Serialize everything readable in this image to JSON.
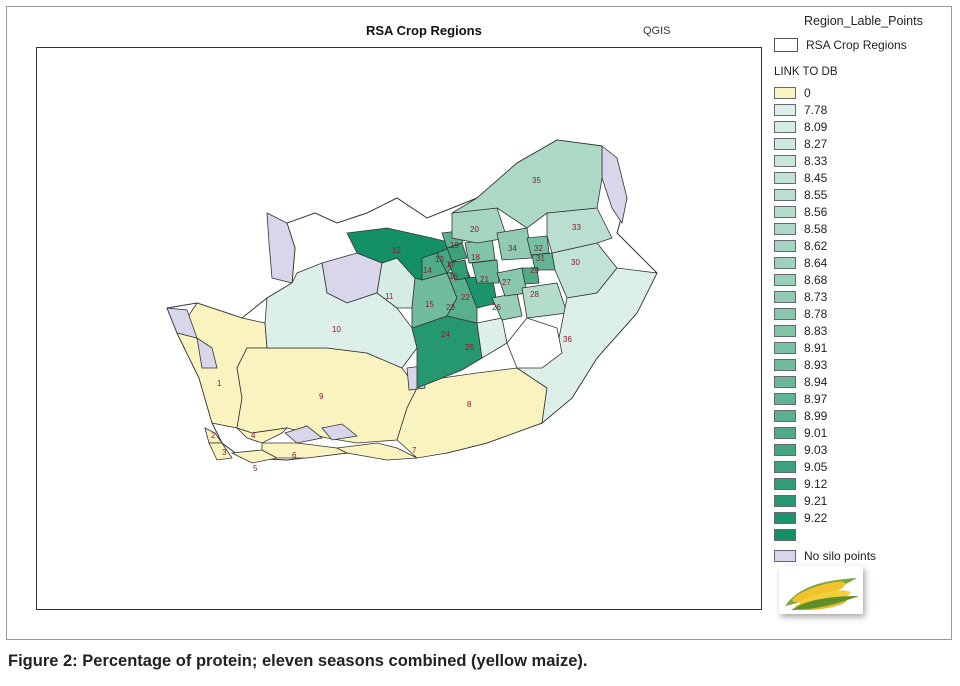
{
  "map": {
    "title": "RSA Crop Regions",
    "subtitle": "QGIS",
    "colors": {
      "zero": "#f8f3bf",
      "no_silo": "#d9d6ec",
      "border": "#333333"
    },
    "region_labels": [
      {
        "id": "1",
        "value": "0"
      },
      {
        "id": "2",
        "value": "0"
      },
      {
        "id": "3",
        "value": "0"
      },
      {
        "id": "4",
        "value": "0"
      },
      {
        "id": "5",
        "value": "0"
      },
      {
        "id": "6",
        "value": "0"
      },
      {
        "id": "7",
        "value": "0"
      },
      {
        "id": "8",
        "value": "0"
      },
      {
        "id": "9",
        "value": "0"
      },
      {
        "id": "10"
      },
      {
        "id": "11"
      },
      {
        "id": "12"
      },
      {
        "id": "13"
      },
      {
        "id": "14"
      },
      {
        "id": "15"
      },
      {
        "id": "16"
      },
      {
        "id": "17"
      },
      {
        "id": "18"
      },
      {
        "id": "19"
      },
      {
        "id": "20"
      },
      {
        "id": "21"
      },
      {
        "id": "22"
      },
      {
        "id": "23"
      },
      {
        "id": "24"
      },
      {
        "id": "25"
      },
      {
        "id": "26"
      },
      {
        "id": "27"
      },
      {
        "id": "28"
      },
      {
        "id": "29"
      },
      {
        "id": "30"
      },
      {
        "id": "31"
      },
      {
        "id": "32"
      },
      {
        "id": "33"
      },
      {
        "id": "34"
      },
      {
        "id": "35"
      },
      {
        "id": "36"
      }
    ]
  },
  "legend": {
    "header": "Region_Lable_Points",
    "crop_layer": "RSA Crop Regions",
    "group_title": "LINK TO DB",
    "items": [
      {
        "label": "0",
        "color": "#f8f3bf"
      },
      {
        "label": "7.78",
        "color": "#dcefe9"
      },
      {
        "label": "8.09",
        "color": "#d5ece4"
      },
      {
        "label": "8.27",
        "color": "#cfe9df"
      },
      {
        "label": "8.33",
        "color": "#c8e6da"
      },
      {
        "label": "8.45",
        "color": "#c1e3d5"
      },
      {
        "label": "8.55",
        "color": "#badfd0"
      },
      {
        "label": "8.56",
        "color": "#b3dccb"
      },
      {
        "label": "8.58",
        "color": "#acd9c6"
      },
      {
        "label": "8.62",
        "color": "#a5d5c1"
      },
      {
        "label": "8.64",
        "color": "#9ed2bc"
      },
      {
        "label": "8.68",
        "color": "#97cfb7"
      },
      {
        "label": "8.73",
        "color": "#90cbb2"
      },
      {
        "label": "8.78",
        "color": "#89c8ad"
      },
      {
        "label": "8.83",
        "color": "#81c4a8"
      },
      {
        "label": "8.91",
        "color": "#7ac0a3"
      },
      {
        "label": "8.93",
        "color": "#72bc9e"
      },
      {
        "label": "8.94",
        "color": "#6ab899"
      },
      {
        "label": "8.97",
        "color": "#61b493"
      },
      {
        "label": "8.99",
        "color": "#58b08d"
      },
      {
        "label": "9.01",
        "color": "#4fab88"
      },
      {
        "label": "9.03",
        "color": "#45a782"
      },
      {
        "label": "9.05",
        "color": "#3ba27c"
      },
      {
        "label": "9.12",
        "color": "#309d76"
      },
      {
        "label": "9.21",
        "color": "#259870"
      },
      {
        "label": "9.22",
        "color": "#1c946b"
      },
      {
        "label": "",
        "color": "#139066"
      },
      {
        "label": "No silo points",
        "color": "#d9d6ec"
      }
    ]
  },
  "caption": "Figure 2: Percentage of protein; eleven seasons combined (yellow maize)."
}
